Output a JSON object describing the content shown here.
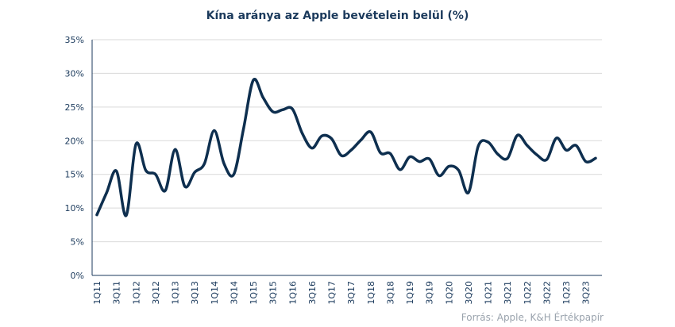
{
  "chart_data": {
    "type": "line",
    "title": "Kína aránya az Apple bevételein  belül  (%)",
    "source": "Forrás: Apple,  K&H Értékpapír",
    "ylim": [
      0,
      35
    ],
    "yticks": [
      0,
      5,
      10,
      15,
      20,
      25,
      30,
      35
    ],
    "ytick_labels": [
      "0%",
      "5%",
      "10%",
      "15%",
      "20%",
      "25%",
      "30%",
      "35%"
    ],
    "x_tick_labels": [
      "1Q11",
      "3Q11",
      "1Q12",
      "3Q12",
      "1Q13",
      "3Q13",
      "1Q14",
      "3Q14",
      "1Q15",
      "3Q15",
      "1Q16",
      "3Q16",
      "1Q17",
      "3Q17",
      "1Q18",
      "3Q18",
      "1Q19",
      "3Q19",
      "1Q20",
      "3Q20",
      "1Q21",
      "3Q21",
      "1Q22",
      "3Q22",
      "1Q23",
      "3Q23"
    ],
    "grid": true,
    "color": "#0e2f4f",
    "categories": [
      "1Q11",
      "2Q11",
      "3Q11",
      "4Q11",
      "1Q12",
      "2Q12",
      "3Q12",
      "4Q12",
      "1Q13",
      "2Q13",
      "3Q13",
      "4Q13",
      "1Q14",
      "2Q14",
      "3Q14",
      "4Q14",
      "1Q15",
      "2Q15",
      "3Q15",
      "4Q15",
      "1Q16",
      "2Q16",
      "3Q16",
      "4Q16",
      "1Q17",
      "2Q17",
      "3Q17",
      "4Q17",
      "1Q18",
      "2Q18",
      "3Q18",
      "4Q18",
      "1Q19",
      "2Q19",
      "3Q19",
      "4Q19",
      "1Q20",
      "2Q20",
      "3Q20",
      "4Q20",
      "1Q21",
      "2Q21",
      "3Q21",
      "4Q21",
      "1Q22",
      "2Q22",
      "3Q22",
      "4Q22",
      "1Q23",
      "2Q23",
      "3Q23",
      "4Q23"
    ],
    "values": [
      9.0,
      12.3,
      15.5,
      8.9,
      19.5,
      15.6,
      15.0,
      12.6,
      18.7,
      13.2,
      15.3,
      16.6,
      21.5,
      16.6,
      15.0,
      21.8,
      29.0,
      26.4,
      24.3,
      24.6,
      24.7,
      21.1,
      18.9,
      20.7,
      20.3,
      17.8,
      18.6,
      20.1,
      21.3,
      18.2,
      18.1,
      15.7,
      17.6,
      16.9,
      17.3,
      14.8,
      16.2,
      15.6,
      12.3,
      19.2,
      19.8,
      18.0,
      17.4,
      20.8,
      19.3,
      17.9,
      17.2,
      20.4,
      18.6,
      19.3,
      16.9,
      17.4
    ]
  }
}
